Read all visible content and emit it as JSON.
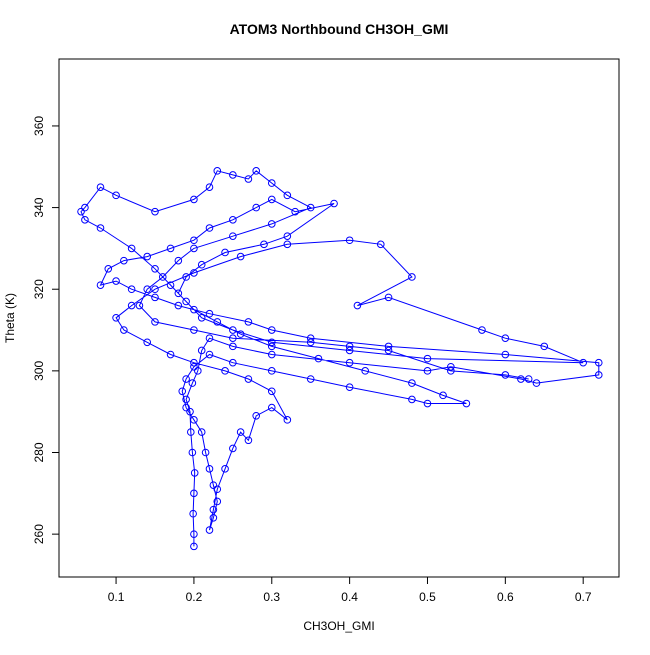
{
  "chart_data": {
    "type": "line",
    "title": "ATOM3 Northbound CH3OH_GMI",
    "x_label": "CH3OH_GMI",
    "y_label": "Theta (K)",
    "color": "#0000ff",
    "markers": true,
    "grid": false,
    "xlim": [
      0.0267,
      0.746
    ],
    "ylim": [
      249.5,
      376.4
    ],
    "xticks": [
      0.1,
      0.2,
      0.3,
      0.4,
      0.5,
      0.6,
      0.7
    ],
    "yticks": [
      260,
      280,
      300,
      320,
      340,
      360
    ],
    "x": [
      0.2,
      0.2,
      0.199,
      0.2,
      0.201,
      0.198,
      0.196,
      0.195,
      0.19,
      0.198,
      0.205,
      0.21,
      0.22,
      0.25,
      0.3,
      0.4,
      0.5,
      0.53,
      0.62,
      0.64,
      0.72,
      0.72,
      0.6,
      0.45,
      0.35,
      0.3,
      0.27,
      0.22,
      0.18,
      0.15,
      0.12,
      0.1,
      0.08,
      0.09,
      0.11,
      0.14,
      0.17,
      0.2,
      0.22,
      0.25,
      0.28,
      0.3,
      0.33,
      0.38,
      0.32,
      0.29,
      0.24,
      0.21,
      0.19,
      0.18,
      0.2,
      0.23,
      0.26,
      0.3,
      0.36,
      0.42,
      0.48,
      0.52,
      0.55,
      0.5,
      0.48,
      0.4,
      0.35,
      0.3,
      0.25,
      0.22,
      0.2,
      0.19,
      0.185,
      0.19,
      0.2,
      0.21,
      0.215,
      0.22,
      0.225,
      0.23,
      0.225,
      0.22,
      0.225,
      0.23,
      0.24,
      0.25,
      0.26,
      0.27,
      0.28,
      0.3,
      0.32,
      0.3,
      0.27,
      0.24,
      0.2,
      0.17,
      0.14,
      0.11,
      0.1,
      0.12,
      0.15,
      0.2,
      0.26,
      0.32,
      0.4,
      0.44,
      0.48,
      0.41,
      0.45,
      0.57,
      0.6,
      0.65,
      0.7,
      0.5,
      0.4,
      0.3,
      0.25,
      0.21,
      0.19,
      0.17,
      0.15,
      0.12,
      0.08,
      0.06,
      0.055,
      0.06,
      0.08,
      0.1,
      0.15,
      0.2,
      0.22,
      0.23,
      0.25,
      0.27,
      0.28,
      0.3,
      0.32,
      0.35,
      0.3,
      0.25,
      0.2,
      0.18,
      0.16,
      0.14,
      0.13,
      0.15,
      0.2,
      0.25,
      0.35,
      0.4,
      0.45,
      0.53,
      0.6,
      0.63
    ],
    "values": [
      257,
      260,
      265,
      270,
      275,
      280,
      285,
      290,
      293,
      297,
      300,
      305,
      308,
      306,
      304,
      302,
      300,
      301,
      298,
      297,
      299,
      302,
      304,
      306,
      308,
      310,
      312,
      314,
      316,
      318,
      320,
      322,
      321,
      325,
      327,
      328,
      330,
      332,
      335,
      337,
      340,
      342,
      339,
      341,
      333,
      331,
      329,
      326,
      323,
      319,
      315,
      312,
      309,
      306,
      303,
      300,
      297,
      294,
      292,
      292,
      293,
      296,
      298,
      300,
      302,
      304,
      301,
      298,
      295,
      291,
      288,
      285,
      280,
      276,
      272,
      268,
      264,
      261,
      266,
      271,
      276,
      281,
      285,
      283,
      289,
      291,
      288,
      295,
      298,
      300,
      302,
      304,
      307,
      310,
      313,
      316,
      320,
      324,
      328,
      331,
      332,
      331,
      323,
      316,
      318,
      310,
      308,
      306,
      302,
      303,
      305,
      307,
      310,
      313,
      317,
      321,
      325,
      330,
      335,
      337,
      339,
      340,
      345,
      343,
      339,
      342,
      345,
      349,
      348,
      347,
      349,
      346,
      343,
      340,
      336,
      333,
      330,
      327,
      323,
      320,
      316,
      312,
      310,
      308,
      307,
      306,
      305,
      300,
      299,
      298
    ]
  }
}
